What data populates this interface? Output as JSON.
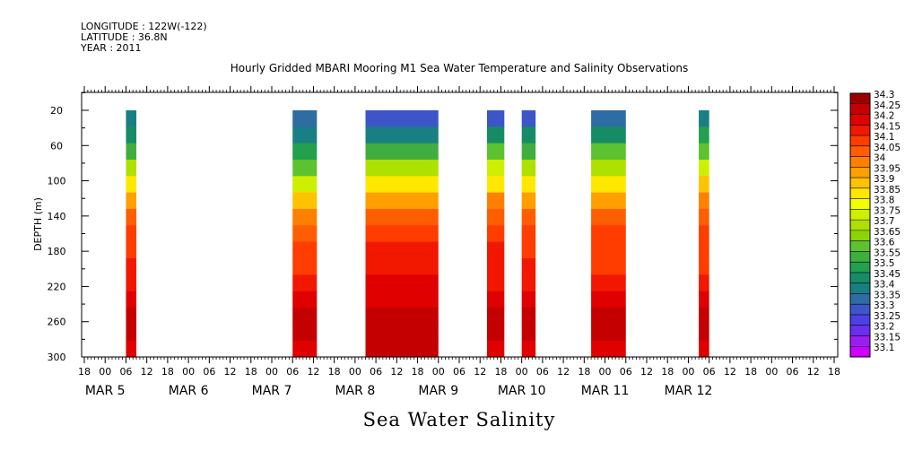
{
  "header": {
    "longitude": "LONGITUDE : 122W(-122)",
    "latitude": "LATITUDE : 36.8N",
    "year": "YEAR : 2011"
  },
  "chart_data": {
    "type": "heatmap",
    "title": "Hourly Gridded MBARI Mooring M1 Sea Water Temperature and Salinity Observations",
    "bottom_title": "Sea Water Salinity",
    "ylabel": "DEPTH (m)",
    "y_ticks": [
      20,
      60,
      100,
      140,
      180,
      220,
      260,
      300
    ],
    "ylim": [
      300,
      0
    ],
    "x_hour_labels": [
      "18",
      "00",
      "06",
      "12",
      "18",
      "00",
      "06",
      "12",
      "18",
      "00",
      "06",
      "12",
      "18",
      "00",
      "06",
      "12",
      "18",
      "00",
      "06",
      "12",
      "18",
      "00",
      "06",
      "12",
      "18",
      "00",
      "06",
      "12",
      "18",
      "00",
      "06",
      "12",
      "18",
      "00",
      "06",
      "12",
      "18"
    ],
    "x_day_labels": [
      "MAR  5",
      "MAR  6",
      "MAR  7",
      "MAR  8",
      "MAR  9",
      "MAR 10",
      "MAR 11",
      "MAR 12"
    ],
    "colorbar": {
      "levels": [
        "34.3",
        "34.25",
        "34.2",
        "34.15",
        "34.1",
        "34.05",
        "34",
        "33.95",
        "33.9",
        "33.85",
        "33.8",
        "33.75",
        "33.7",
        "33.65",
        "33.6",
        "33.55",
        "33.5",
        "33.45",
        "33.4",
        "33.35",
        "33.3",
        "33.25",
        "33.2",
        "33.15",
        "33.1"
      ],
      "colors": [
        "#9e0000",
        "#c40000",
        "#e00000",
        "#f21800",
        "#ff3d00",
        "#ff5e00",
        "#ff8000",
        "#ff9f00",
        "#ffc200",
        "#ffe800",
        "#f2ff00",
        "#cfef00",
        "#aee000",
        "#8ed400",
        "#5cc230",
        "#3fae3f",
        "#22a04e",
        "#168c66",
        "#197f84",
        "#2e6da3",
        "#3c56c8",
        "#4b40e6",
        "#6a2ef0",
        "#9a1ef2",
        "#cc00ff"
      ]
    },
    "columns": [
      {
        "start_hours": 12,
        "end_hours": 15,
        "profile": [
          33.4,
          33.45,
          33.55,
          33.7,
          33.85,
          33.95,
          34.05,
          34.1,
          34.1,
          34.15,
          34.15,
          34.2,
          34.25,
          34.25,
          34.2
        ]
      },
      {
        "start_hours": 60,
        "end_hours": 67,
        "profile": [
          33.38,
          33.4,
          33.5,
          33.62,
          33.78,
          33.9,
          34.0,
          34.05,
          34.1,
          34.12,
          34.15,
          34.2,
          34.25,
          34.27,
          34.22
        ]
      },
      {
        "start_hours": 81,
        "end_hours": 102,
        "profile": [
          33.3,
          33.42,
          33.58,
          33.72,
          33.85,
          33.95,
          34.05,
          34.12,
          34.15,
          34.18,
          34.2,
          34.24,
          34.27,
          34.28,
          34.25
        ]
      },
      {
        "start_hours": 116,
        "end_hours": 121,
        "profile": [
          33.32,
          33.45,
          33.6,
          33.75,
          33.88,
          34.0,
          34.07,
          34.12,
          34.15,
          34.15,
          34.18,
          34.22,
          34.26,
          34.27,
          34.23
        ]
      },
      {
        "start_hours": 126,
        "end_hours": 130,
        "profile": [
          33.32,
          33.45,
          33.58,
          33.72,
          33.85,
          33.98,
          34.06,
          34.11,
          34.13,
          34.15,
          34.17,
          34.22,
          34.26,
          34.27,
          34.24
        ]
      },
      {
        "start_hours": 146,
        "end_hours": 156,
        "profile": [
          33.36,
          33.48,
          33.6,
          33.74,
          33.86,
          33.96,
          34.05,
          34.1,
          34.12,
          34.14,
          34.18,
          34.23,
          34.27,
          34.28,
          34.24
        ]
      },
      {
        "start_hours": 177,
        "end_hours": 180,
        "profile": [
          33.4,
          33.5,
          33.62,
          33.78,
          33.9,
          34.0,
          34.07,
          34.11,
          34.13,
          34.14,
          34.18,
          34.23,
          34.26,
          34.26,
          34.2
        ]
      }
    ]
  }
}
